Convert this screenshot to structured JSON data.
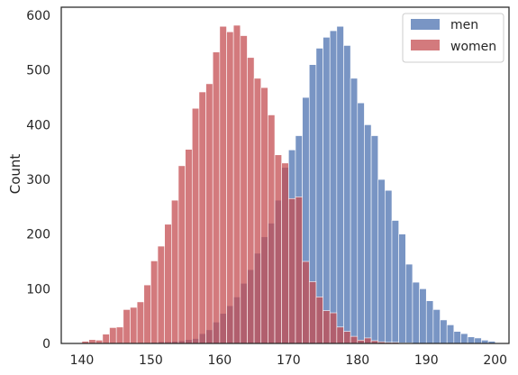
{
  "chart_data": {
    "type": "histogram",
    "title": "",
    "xlabel": "",
    "ylabel": "Count",
    "xlim": [
      137.0,
      202.0
    ],
    "ylim": [
      0,
      615
    ],
    "xticks": [
      140,
      150,
      160,
      170,
      180,
      190,
      200
    ],
    "yticks": [
      0,
      100,
      200,
      300,
      400,
      500,
      600
    ],
    "bin_width": 1.0,
    "grid": false,
    "legend_position": "top-right",
    "colors": {
      "men": "#4c72b0",
      "women": "#c44e52"
    },
    "series": [
      {
        "name": "men",
        "x": [
          149,
          150,
          151,
          152,
          153,
          154,
          155,
          156,
          157,
          158,
          159,
          160,
          161,
          162,
          163,
          164,
          165,
          166,
          167,
          168,
          169,
          170,
          171,
          172,
          173,
          174,
          175,
          176,
          177,
          178,
          179,
          180,
          181,
          182,
          183,
          184,
          185,
          186,
          187,
          188,
          189,
          190,
          191,
          192,
          193,
          194,
          195,
          196,
          197,
          198,
          199
        ],
        "counts": [
          1,
          2,
          3,
          3,
          4,
          5,
          7,
          9,
          18,
          25,
          39,
          55,
          69,
          85,
          110,
          135,
          165,
          195,
          220,
          262,
          322,
          354,
          380,
          450,
          510,
          540,
          560,
          572,
          580,
          545,
          485,
          440,
          400,
          380,
          300,
          280,
          225,
          200,
          145,
          112,
          100,
          78,
          62,
          43,
          34,
          22,
          18,
          12,
          10,
          6,
          4
        ]
      },
      {
        "name": "women",
        "x": [
          140,
          141,
          142,
          143,
          144,
          145,
          146,
          147,
          148,
          149,
          150,
          151,
          152,
          153,
          154,
          155,
          156,
          157,
          158,
          159,
          160,
          161,
          162,
          163,
          164,
          165,
          166,
          167,
          168,
          169,
          170,
          171,
          172,
          173,
          174,
          175,
          176,
          177,
          178,
          179,
          180,
          181,
          182,
          183,
          184,
          185,
          186,
          187
        ],
        "counts": [
          4,
          7,
          6,
          17,
          29,
          30,
          62,
          66,
          76,
          107,
          151,
          178,
          218,
          262,
          325,
          355,
          430,
          460,
          475,
          533,
          580,
          570,
          582,
          563,
          523,
          485,
          468,
          418,
          345,
          330,
          265,
          268,
          150,
          113,
          85,
          60,
          56,
          30,
          22,
          13,
          6,
          10,
          5,
          3,
          2,
          2,
          1,
          1
        ]
      }
    ]
  }
}
